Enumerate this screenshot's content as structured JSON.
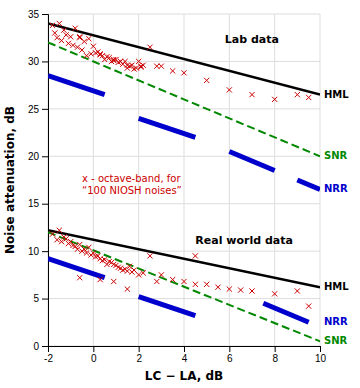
{
  "chart_data": {
    "type": "line",
    "xlabel": "LC − LA, dB",
    "ylabel": "Noise attenuation, dB",
    "xlim": [
      -2,
      10
    ],
    "ylim": [
      0,
      35
    ],
    "xticks": [
      -2,
      0,
      2,
      4,
      6,
      8,
      10
    ],
    "yticks": [
      0,
      5,
      10,
      15,
      20,
      25,
      30,
      35
    ],
    "grid": true,
    "series": [
      {
        "name": "HML",
        "type": "line",
        "line_style": "solid",
        "color": "#000000",
        "x": [
          -2,
          10
        ],
        "values": [
          34.0,
          26.5
        ]
      },
      {
        "name": "SNR",
        "type": "line",
        "line_style": "dashed",
        "color": "#008800",
        "x": [
          -2,
          10
        ],
        "values": [
          32.0,
          20.0
        ]
      },
      {
        "name": "NRR",
        "type": "segments",
        "line_style": "solid",
        "color": "#0000cc",
        "segments": [
          [
            -2.0,
            28.5,
            0.5,
            26.5
          ],
          [
            2.0,
            24.0,
            4.5,
            22.0
          ],
          [
            6.0,
            20.5,
            8.0,
            18.5
          ],
          [
            9.0,
            17.5,
            10.0,
            16.5
          ]
        ]
      },
      {
        "name": "HML",
        "type": "line",
        "line_style": "solid",
        "color": "#000000",
        "x": [
          -2,
          10
        ],
        "values": [
          12.2,
          6.2
        ]
      },
      {
        "name": "SNR",
        "type": "line",
        "line_style": "dashed",
        "color": "#008800",
        "x": [
          -2,
          10
        ],
        "values": [
          12.0,
          0.5
        ]
      },
      {
        "name": "NRR",
        "type": "segments",
        "line_style": "solid",
        "color": "#0000cc",
        "segments": [
          [
            -2.0,
            9.2,
            0.5,
            7.2
          ],
          [
            2.0,
            5.2,
            4.5,
            3.2
          ],
          [
            7.5,
            4.5,
            9.5,
            2.5
          ]
        ]
      },
      {
        "type": "scatter",
        "marker": "x",
        "color": "#cc0000",
        "x": [
          -1.8,
          -1.6,
          -1.5,
          -1.4,
          -1.3,
          -1.2,
          -1.1,
          -1.0,
          -0.9,
          -0.8,
          -0.7,
          -0.6,
          -0.5,
          -0.4,
          -0.3,
          -0.2,
          -0.1,
          0.0,
          0.1,
          0.2,
          0.3,
          0.4,
          0.5,
          0.6,
          0.7,
          0.8,
          0.9,
          1.0,
          1.1,
          1.2,
          1.3,
          1.4,
          1.5,
          1.6,
          1.7,
          1.8,
          1.9,
          2.0,
          2.1,
          2.2,
          2.5,
          2.8,
          3.0,
          3.5,
          4.0,
          5.0,
          6.0,
          7.0,
          8.0,
          9.0,
          9.5,
          -1.7,
          -0.6,
          0.3,
          0.9,
          1.5,
          2.1
        ],
        "values": [
          33.8,
          32.5,
          34.0,
          32.2,
          33.3,
          32.8,
          31.9,
          32.6,
          31.7,
          33.5,
          31.5,
          32.6,
          31.2,
          32.1,
          30.6,
          32.4,
          30.8,
          31.6,
          30.9,
          31.0,
          30.7,
          30.6,
          30.2,
          30.5,
          30.4,
          30.0,
          30.1,
          30.2,
          29.9,
          30.0,
          29.7,
          30.0,
          29.6,
          29.5,
          29.6,
          29.2,
          29.3,
          30.0,
          29.4,
          29.6,
          31.5,
          29.5,
          29.5,
          29.0,
          28.8,
          28.0,
          27.0,
          26.5,
          26.0,
          26.5,
          26.2,
          33.0,
          32.5,
          30.8,
          30.2,
          29.3,
          29.5
        ]
      },
      {
        "type": "scatter",
        "marker": "x",
        "color": "#cc0000",
        "x": [
          -1.8,
          -1.6,
          -1.5,
          -1.4,
          -1.3,
          -1.2,
          -1.1,
          -1.0,
          -0.9,
          -0.8,
          -0.7,
          -0.6,
          -0.5,
          -0.4,
          -0.3,
          -0.2,
          -0.1,
          0.0,
          0.1,
          0.2,
          0.3,
          0.4,
          0.5,
          0.6,
          0.7,
          0.8,
          0.9,
          1.0,
          1.1,
          1.2,
          1.3,
          1.4,
          1.5,
          1.6,
          1.7,
          1.8,
          2.0,
          2.2,
          2.5,
          3.0,
          3.5,
          4.0,
          4.5,
          5.0,
          5.5,
          6.0,
          6.5,
          7.0,
          8.0,
          9.0,
          9.5,
          -0.6,
          0.3,
          0.9,
          1.5,
          2.8,
          4.5
        ],
        "values": [
          11.8,
          11.2,
          12.2,
          11.0,
          11.5,
          11.3,
          10.8,
          11.0,
          10.6,
          10.5,
          10.2,
          10.7,
          10.0,
          10.2,
          9.8,
          10.4,
          9.6,
          9.8,
          9.4,
          9.5,
          9.2,
          9.0,
          9.1,
          8.6,
          8.9,
          8.8,
          8.6,
          8.5,
          8.3,
          8.2,
          8.0,
          8.1,
          7.9,
          8.4,
          7.8,
          8.0,
          7.5,
          7.7,
          9.5,
          7.5,
          7.0,
          6.8,
          6.5,
          6.5,
          6.2,
          6.0,
          5.9,
          5.8,
          5.5,
          5.8,
          4.2,
          7.2,
          7.0,
          6.8,
          6.0,
          6.8,
          9.5
        ]
      }
    ],
    "annotations": [
      {
        "text": "Lab data",
        "x": 5.8,
        "y": 33.0
      },
      {
        "text": "Real world data",
        "x": 4.5,
        "y": 11.8
      },
      {
        "text": [
          "x - octave-band, for",
          "“100 NIOSH noises”"
        ],
        "x": -0.5,
        "y": 18.2,
        "color": "#cc0000"
      }
    ]
  }
}
